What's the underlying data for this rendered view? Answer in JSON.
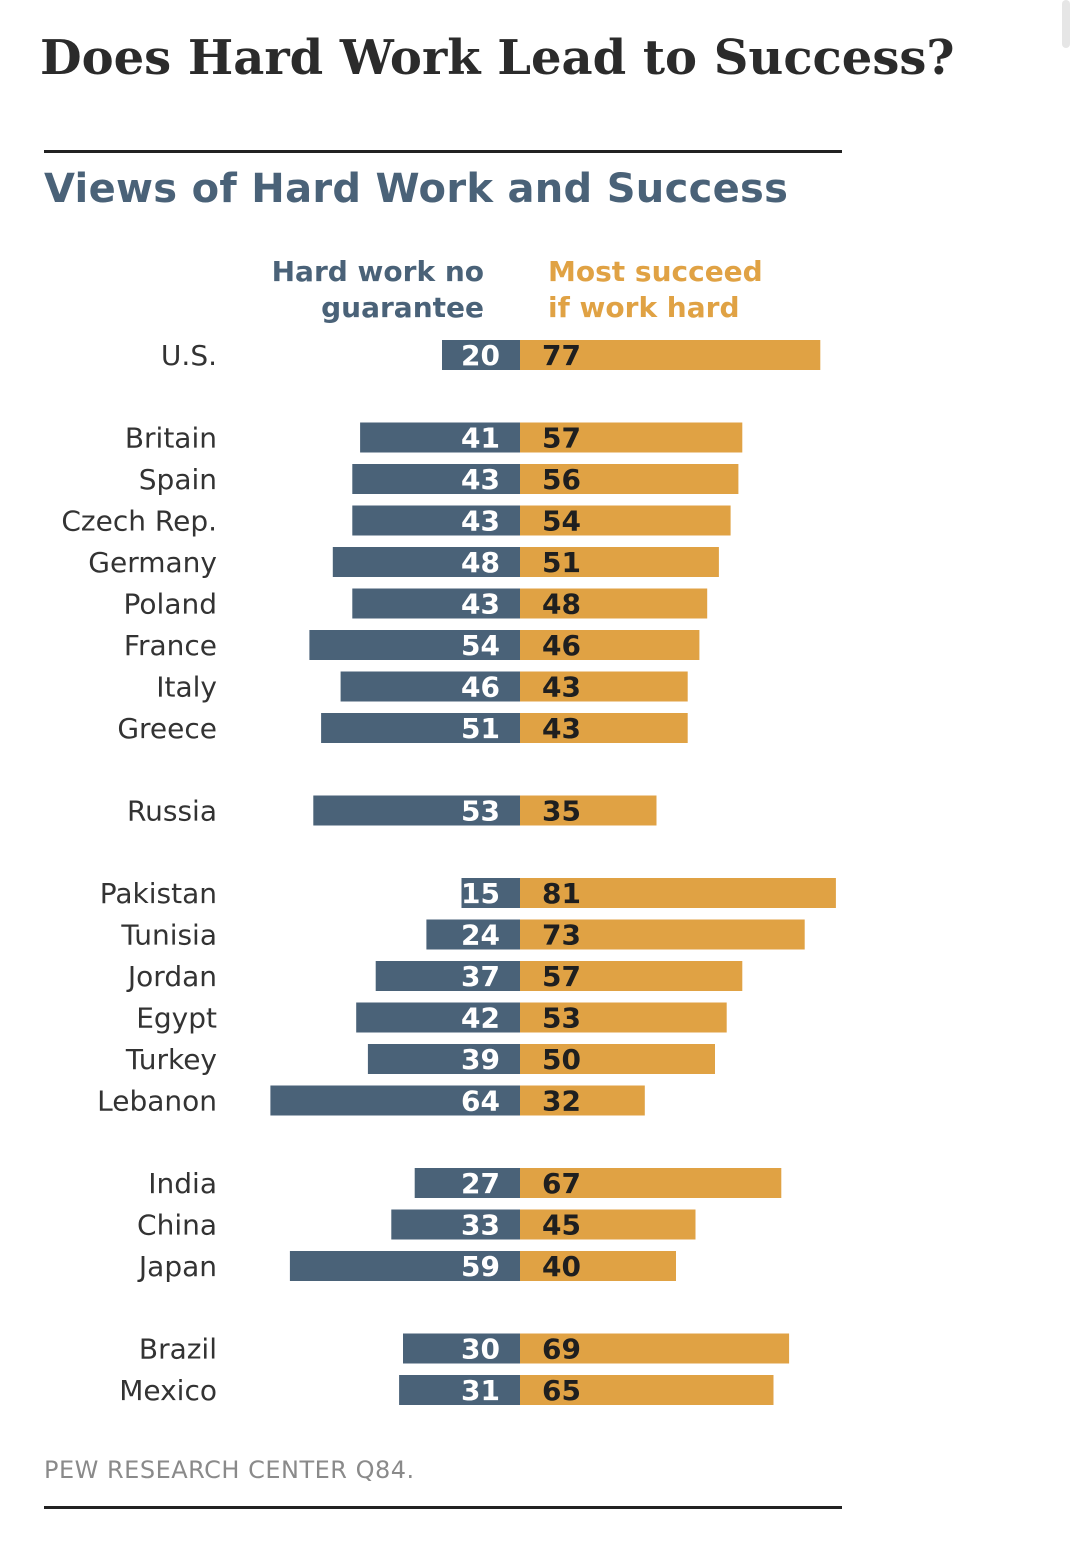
{
  "page": {
    "title": "Does Hard Work Lead to Success?"
  },
  "chart_data": {
    "type": "bar",
    "title": "Views of Hard Work and Success",
    "layout": "diverging horizontal bars",
    "colors": {
      "Hard work no guarantee": "#4a6278",
      "Most succeed if work hard": "#e0a244"
    },
    "legend": {
      "left": [
        "Hard work no",
        "guarantee"
      ],
      "right": [
        "Most succeed",
        "if work hard"
      ]
    },
    "series": [
      {
        "name": "Hard work no guarantee",
        "values": [
          20,
          41,
          43,
          43,
          48,
          43,
          54,
          46,
          51,
          53,
          15,
          24,
          37,
          42,
          39,
          64,
          27,
          33,
          59,
          30,
          31
        ]
      },
      {
        "name": "Most succeed if work hard",
        "values": [
          77,
          57,
          56,
          54,
          51,
          48,
          46,
          43,
          43,
          35,
          81,
          73,
          57,
          53,
          50,
          32,
          67,
          45,
          40,
          69,
          65
        ]
      }
    ],
    "categories": [
      "U.S.",
      "Britain",
      "Spain",
      "Czech Rep.",
      "Germany",
      "Poland",
      "France",
      "Italy",
      "Greece",
      "Russia",
      "Pakistan",
      "Tunisia",
      "Jordan",
      "Egypt",
      "Turkey",
      "Lebanon",
      "India",
      "China",
      "Japan",
      "Brazil",
      "Mexico"
    ],
    "groups": [
      [
        "U.S."
      ],
      [
        "Britain",
        "Spain",
        "Czech Rep.",
        "Germany",
        "Poland",
        "France",
        "Italy",
        "Greece"
      ],
      [
        "Russia"
      ],
      [
        "Pakistan",
        "Tunisia",
        "Jordan",
        "Egypt",
        "Turkey",
        "Lebanon"
      ],
      [
        "India",
        "China",
        "Japan"
      ],
      [
        "Brazil",
        "Mexico"
      ]
    ],
    "source": "PEW RESEARCH  CENTER Q84."
  }
}
